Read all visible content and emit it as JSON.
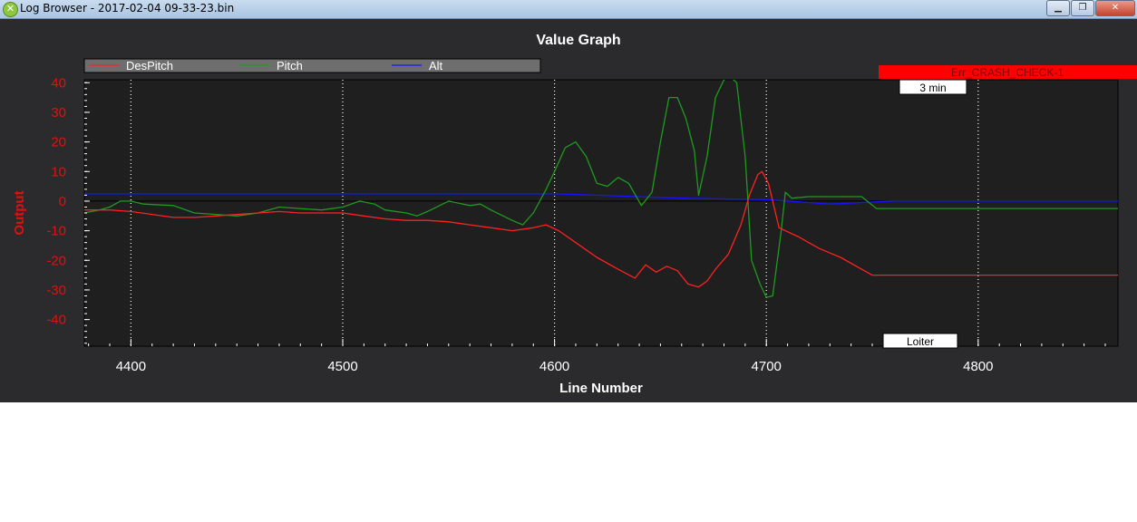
{
  "window": {
    "title": "Log Browser - 2017-02-04 09-33-23.bin",
    "icon": "app-icon",
    "buttons": [
      "minimize-icon",
      "restore-icon",
      "close-icon"
    ]
  },
  "chart_data": {
    "type": "line",
    "title": "Value Graph",
    "xlabel": "Line Number",
    "ylabel": "Output",
    "xlim": [
      4378,
      4866
    ],
    "ylim": [
      -49,
      41
    ],
    "xticks": [
      4400,
      4500,
      4600,
      4700,
      4800
    ],
    "yticks": [
      40,
      30,
      20,
      10,
      0,
      -10,
      -20,
      -30,
      -40
    ],
    "grid": "vertical dotted at x ticks",
    "legend_position": "top-left",
    "series": [
      {
        "name": "DesPitch",
        "color": "#ff2020",
        "points": [
          [
            4378,
            -3
          ],
          [
            4390,
            -3
          ],
          [
            4400,
            -3.5
          ],
          [
            4410,
            -4.5
          ],
          [
            4420,
            -5.5
          ],
          [
            4430,
            -5.5
          ],
          [
            4440,
            -5
          ],
          [
            4450,
            -4.5
          ],
          [
            4460,
            -4
          ],
          [
            4470,
            -3.5
          ],
          [
            4480,
            -4
          ],
          [
            4490,
            -4
          ],
          [
            4500,
            -4
          ],
          [
            4510,
            -5
          ],
          [
            4520,
            -6
          ],
          [
            4530,
            -6.5
          ],
          [
            4540,
            -6.5
          ],
          [
            4550,
            -7
          ],
          [
            4560,
            -8
          ],
          [
            4570,
            -9
          ],
          [
            4580,
            -10
          ],
          [
            4590,
            -9
          ],
          [
            4596,
            -8
          ],
          [
            4602,
            -10
          ],
          [
            4610,
            -14
          ],
          [
            4620,
            -19
          ],
          [
            4630,
            -23
          ],
          [
            4638,
            -26
          ],
          [
            4643,
            -21.5
          ],
          [
            4648,
            -24
          ],
          [
            4653,
            -22
          ],
          [
            4658,
            -23.5
          ],
          [
            4663,
            -28
          ],
          [
            4668,
            -29
          ],
          [
            4672,
            -27
          ],
          [
            4676,
            -23
          ],
          [
            4682,
            -18
          ],
          [
            4688,
            -8
          ],
          [
            4692,
            2
          ],
          [
            4696,
            9
          ],
          [
            4698,
            10
          ],
          [
            4701,
            6
          ],
          [
            4706,
            -9
          ],
          [
            4715,
            -12
          ],
          [
            4725,
            -16
          ],
          [
            4735,
            -19
          ],
          [
            4745,
            -23
          ],
          [
            4750,
            -25
          ],
          [
            4866,
            -25
          ]
        ]
      },
      {
        "name": "Pitch",
        "color": "#1f9a1f",
        "points": [
          [
            4378,
            -4
          ],
          [
            4385,
            -3
          ],
          [
            4390,
            -2
          ],
          [
            4395,
            0
          ],
          [
            4400,
            0
          ],
          [
            4406,
            -1
          ],
          [
            4420,
            -1.5
          ],
          [
            4430,
            -4
          ],
          [
            4440,
            -4.5
          ],
          [
            4450,
            -5
          ],
          [
            4460,
            -4
          ],
          [
            4470,
            -2
          ],
          [
            4480,
            -2.5
          ],
          [
            4490,
            -3
          ],
          [
            4500,
            -2
          ],
          [
            4508,
            0
          ],
          [
            4515,
            -1
          ],
          [
            4520,
            -3
          ],
          [
            4530,
            -4
          ],
          [
            4535,
            -5
          ],
          [
            4540,
            -3.5
          ],
          [
            4550,
            0
          ],
          [
            4560,
            -1.5
          ],
          [
            4565,
            -1
          ],
          [
            4570,
            -3
          ],
          [
            4580,
            -6.5
          ],
          [
            4585,
            -8
          ],
          [
            4590,
            -4
          ],
          [
            4596,
            4
          ],
          [
            4600,
            10
          ],
          [
            4605,
            18
          ],
          [
            4610,
            20
          ],
          [
            4615,
            15
          ],
          [
            4620,
            6
          ],
          [
            4625,
            5
          ],
          [
            4630,
            8
          ],
          [
            4635,
            6
          ],
          [
            4641,
            -1.5
          ],
          [
            4646,
            3
          ],
          [
            4650,
            20
          ],
          [
            4654,
            35
          ],
          [
            4658,
            35
          ],
          [
            4662,
            28
          ],
          [
            4666,
            17
          ],
          [
            4668,
            2
          ],
          [
            4672,
            15
          ],
          [
            4676,
            35
          ],
          [
            4680,
            41
          ],
          [
            4683,
            42
          ],
          [
            4686,
            40
          ],
          [
            4690,
            15
          ],
          [
            4693,
            -20
          ],
          [
            4697,
            -28
          ],
          [
            4700,
            -32.5
          ],
          [
            4703,
            -32
          ],
          [
            4707,
            -10
          ],
          [
            4709,
            3
          ],
          [
            4712,
            1
          ],
          [
            4720,
            1.5
          ],
          [
            4730,
            1.5
          ],
          [
            4740,
            1.5
          ],
          [
            4745,
            1.5
          ],
          [
            4752,
            -2.5
          ],
          [
            4866,
            -2.5
          ]
        ]
      },
      {
        "name": "Alt",
        "color": "#1515ff",
        "points": [
          [
            4378,
            2.5
          ],
          [
            4600,
            2.5
          ],
          [
            4660,
            1
          ],
          [
            4700,
            0.5
          ],
          [
            4730,
            -1
          ],
          [
            4760,
            0
          ],
          [
            4866,
            0
          ]
        ]
      }
    ],
    "annotations": [
      {
        "label": "Err_CRASH_CHECK-1",
        "kind": "error-banner",
        "color": "#ff0000"
      },
      {
        "label": "3 min",
        "kind": "marker-label"
      },
      {
        "label": "Loiter",
        "kind": "mode-label"
      }
    ]
  }
}
